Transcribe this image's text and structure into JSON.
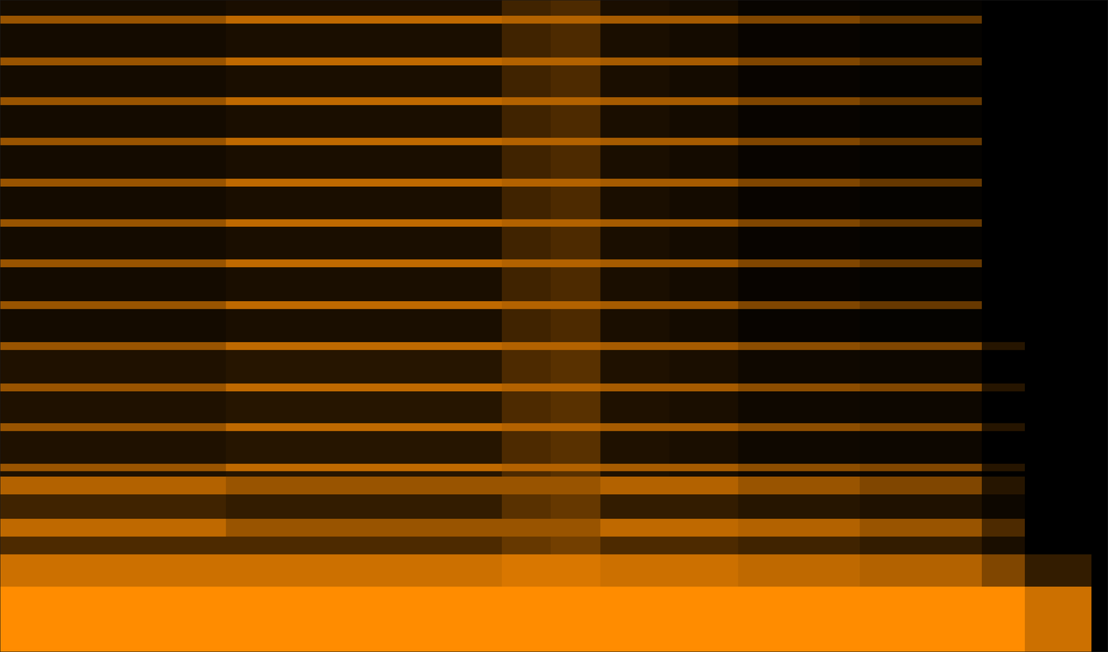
{
  "chart_data": {
    "type": "heatmap",
    "color": "#ff8c00",
    "tick_labels": false,
    "xlim": [
      0,
      100
    ],
    "ylim": [
      0,
      100
    ],
    "x_bins": [
      0,
      10,
      20.4,
      33,
      45.3,
      49.7,
      54.2,
      60.4,
      66.6,
      77.6,
      88.6,
      92.5,
      98.5,
      100
    ],
    "y_bins": [
      0,
      10,
      15,
      17.7,
      20.4,
      24.2,
      26.9,
      27.7,
      28.9,
      33.9,
      35.1,
      40.0,
      41.2,
      46.3,
      47.5,
      52.6,
      53.8,
      59.0,
      60.2,
      65.2,
      66.4,
      71.4,
      72.6,
      77.7,
      78.9,
      83.9,
      85.1,
      90.0,
      91.2,
      96.4,
      97.6,
      100
    ],
    "values": [
      [
        1,
        1,
        1,
        1,
        1,
        1,
        1,
        1,
        1,
        1,
        1,
        0.8,
        0
      ],
      [
        0.8,
        0.8,
        0.8,
        0.8,
        0.85,
        0.85,
        0.8,
        0.8,
        0.75,
        0.7,
        0.5,
        0.2,
        0
      ],
      [
        0.3,
        0.3,
        0.3,
        0.3,
        0.4,
        0.45,
        0.3,
        0.3,
        0.25,
        0.2,
        0.1,
        0,
        0
      ],
      [
        0.75,
        0.75,
        0.6,
        0.6,
        0.6,
        0.6,
        0.75,
        0.75,
        0.7,
        0.6,
        0.3,
        0,
        0
      ],
      [
        0.25,
        0.25,
        0.2,
        0.2,
        0.35,
        0.4,
        0.2,
        0.2,
        0.15,
        0.12,
        0.05,
        0,
        0
      ],
      [
        0.7,
        0.7,
        0.6,
        0.6,
        0.6,
        0.6,
        0.7,
        0.7,
        0.6,
        0.5,
        0.15,
        0,
        0
      ],
      [
        0.12,
        0.12,
        0.15,
        0.15,
        0.3,
        0.35,
        0.12,
        0.1,
        0.06,
        0.05,
        0,
        0,
        0
      ],
      [
        0.6,
        0.6,
        0.75,
        0.75,
        0.7,
        0.7,
        0.65,
        0.65,
        0.55,
        0.5,
        0.15,
        0,
        0
      ],
      [
        0.12,
        0.12,
        0.15,
        0.15,
        0.3,
        0.35,
        0.12,
        0.1,
        0.06,
        0.05,
        0,
        0,
        0
      ],
      [
        0.6,
        0.6,
        0.75,
        0.75,
        0.7,
        0.7,
        0.65,
        0.65,
        0.55,
        0.5,
        0.15,
        0,
        0
      ],
      [
        0.12,
        0.12,
        0.15,
        0.15,
        0.3,
        0.35,
        0.12,
        0.1,
        0.06,
        0.05,
        0,
        0,
        0
      ],
      [
        0.6,
        0.6,
        0.75,
        0.75,
        0.7,
        0.7,
        0.65,
        0.65,
        0.55,
        0.5,
        0.15,
        0,
        0
      ],
      [
        0.12,
        0.12,
        0.15,
        0.15,
        0.3,
        0.35,
        0.12,
        0.1,
        0.06,
        0.05,
        0,
        0,
        0
      ],
      [
        0.6,
        0.6,
        0.75,
        0.75,
        0.7,
        0.7,
        0.65,
        0.65,
        0.55,
        0.5,
        0.15,
        0,
        0
      ],
      [
        0.08,
        0.08,
        0.1,
        0.1,
        0.25,
        0.3,
        0.1,
        0.08,
        0.03,
        0.02,
        0,
        0,
        0
      ],
      [
        0.6,
        0.6,
        0.75,
        0.75,
        0.7,
        0.7,
        0.65,
        0.65,
        0.5,
        0.4,
        0,
        0,
        0
      ],
      [
        0.08,
        0.08,
        0.1,
        0.1,
        0.25,
        0.3,
        0.1,
        0.08,
        0.03,
        0.02,
        0,
        0,
        0
      ],
      [
        0.6,
        0.6,
        0.75,
        0.75,
        0.7,
        0.7,
        0.65,
        0.65,
        0.5,
        0.4,
        0,
        0,
        0
      ],
      [
        0.08,
        0.08,
        0.1,
        0.1,
        0.25,
        0.3,
        0.1,
        0.08,
        0.03,
        0.02,
        0,
        0,
        0
      ],
      [
        0.6,
        0.6,
        0.75,
        0.75,
        0.7,
        0.7,
        0.65,
        0.65,
        0.5,
        0.4,
        0,
        0,
        0
      ],
      [
        0.08,
        0.08,
        0.1,
        0.1,
        0.25,
        0.3,
        0.1,
        0.08,
        0.03,
        0.02,
        0,
        0,
        0
      ],
      [
        0.6,
        0.6,
        0.75,
        0.75,
        0.7,
        0.7,
        0.65,
        0.65,
        0.5,
        0.4,
        0,
        0,
        0
      ],
      [
        0.08,
        0.08,
        0.1,
        0.1,
        0.25,
        0.3,
        0.1,
        0.08,
        0.03,
        0.02,
        0,
        0,
        0
      ],
      [
        0.6,
        0.6,
        0.75,
        0.75,
        0.7,
        0.7,
        0.65,
        0.65,
        0.5,
        0.4,
        0,
        0,
        0
      ],
      [
        0.08,
        0.08,
        0.1,
        0.1,
        0.25,
        0.3,
        0.1,
        0.08,
        0.03,
        0.02,
        0,
        0,
        0
      ],
      [
        0.6,
        0.6,
        0.75,
        0.75,
        0.7,
        0.7,
        0.65,
        0.65,
        0.5,
        0.4,
        0,
        0,
        0
      ],
      [
        0.08,
        0.08,
        0.1,
        0.1,
        0.25,
        0.3,
        0.1,
        0.08,
        0.03,
        0.02,
        0,
        0,
        0
      ],
      [
        0.6,
        0.6,
        0.75,
        0.75,
        0.7,
        0.7,
        0.65,
        0.65,
        0.5,
        0.4,
        0,
        0,
        0
      ],
      [
        0.08,
        0.08,
        0.1,
        0.1,
        0.25,
        0.3,
        0.1,
        0.08,
        0.03,
        0.02,
        0,
        0,
        0
      ],
      [
        0.6,
        0.6,
        0.75,
        0.75,
        0.7,
        0.7,
        0.65,
        0.65,
        0.5,
        0.4,
        0,
        0,
        0
      ],
      [
        0.08,
        0.08,
        0.1,
        0.1,
        0.25,
        0.3,
        0.1,
        0.08,
        0.03,
        0.02,
        0,
        0,
        0
      ]
    ]
  }
}
